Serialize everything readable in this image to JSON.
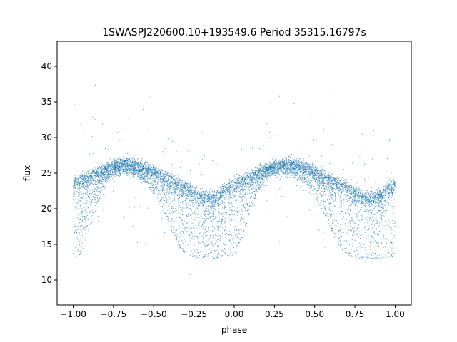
{
  "chart_data": {
    "type": "scatter",
    "title": "1SWASPJ220600.10+193549.6 Period 35315.16797s",
    "xlabel": "phase",
    "ylabel": "flux",
    "xlim": [
      -1.1,
      1.1
    ],
    "ylim": [
      6.5,
      43.5
    ],
    "x_ticks": [
      -1.0,
      -0.75,
      -0.5,
      -0.25,
      0.0,
      0.25,
      0.5,
      0.75,
      1.0
    ],
    "x_tick_labels": [
      "−1.00",
      "−0.75",
      "−0.50",
      "−0.25",
      "0.00",
      "0.25",
      "0.50",
      "0.75",
      "1.00"
    ],
    "y_ticks": [
      10,
      15,
      20,
      25,
      30,
      35,
      40
    ],
    "y_tick_labels": [
      "10",
      "15",
      "20",
      "25",
      "30",
      "35",
      "40"
    ],
    "grid": false,
    "legend": "none",
    "point_color": "#1f77b4",
    "light_curve": {
      "phase": [
        -1.0,
        -0.95,
        -0.9,
        -0.85,
        -0.8,
        -0.75,
        -0.7,
        -0.65,
        -0.6,
        -0.55,
        -0.5,
        -0.45,
        -0.4,
        -0.35,
        -0.3,
        -0.25,
        -0.2,
        -0.15,
        -0.1,
        -0.05,
        0.0,
        0.05,
        0.1,
        0.15,
        0.2,
        0.25,
        0.3,
        0.35,
        0.4,
        0.45,
        0.5,
        0.55,
        0.6,
        0.65,
        0.7,
        0.75,
        0.8,
        0.85,
        0.9,
        0.95,
        1.0
      ],
      "upper_envelope": [
        24.0,
        24.5,
        25.0,
        25.5,
        26.0,
        26.5,
        26.8,
        26.8,
        26.5,
        26.2,
        25.8,
        25.2,
        24.6,
        24.0,
        23.5,
        22.8,
        22.2,
        22.0,
        22.3,
        23.2,
        24.0,
        24.5,
        25.0,
        25.5,
        26.0,
        26.5,
        26.8,
        26.8,
        26.5,
        26.2,
        25.8,
        25.2,
        24.6,
        24.0,
        23.5,
        22.8,
        22.2,
        22.0,
        22.3,
        23.2,
        24.0
      ],
      "lower_envelope": [
        13.0,
        13.5,
        17.0,
        20.5,
        23.5,
        24.8,
        25.0,
        25.0,
        24.5,
        23.5,
        22.0,
        20.0,
        17.5,
        15.0,
        13.5,
        13.0,
        13.0,
        13.0,
        13.0,
        13.2,
        13.5,
        16.0,
        19.5,
        22.5,
        24.2,
        25.0,
        25.0,
        24.8,
        24.2,
        23.2,
        21.8,
        19.8,
        17.2,
        14.8,
        13.5,
        13.0,
        13.0,
        13.0,
        13.0,
        13.2,
        13.0
      ]
    }
  }
}
